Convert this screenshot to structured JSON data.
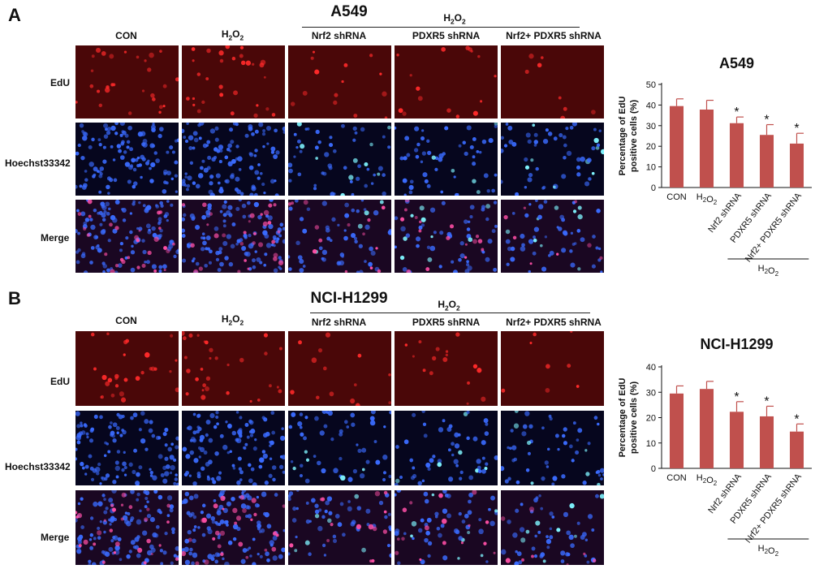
{
  "colors": {
    "bar": "#c0504d",
    "edu_channel": "#ff2a2a",
    "hoechst_channel": "#3a6bff",
    "hoechst_bright": "#7ff5ff",
    "merge_overlap": "#ff4fa6",
    "image_background": "#0b0218"
  },
  "panels": [
    {
      "letter": "A",
      "title": "A549",
      "columns": [
        "CON",
        "H2O2",
        "Nrf2 shRNA",
        "PDXR5 shRNA",
        "Nrf2+ PDXR5 shRNA"
      ],
      "group_label": "H2O2",
      "rows": [
        "EdU",
        "Hoechst33342",
        "Merge"
      ]
    },
    {
      "letter": "B",
      "title": "NCI-H1299",
      "columns": [
        "CON",
        "H2O2",
        "Nrf2 shRNA",
        "PDXR5 shRNA",
        "Nrf2+ PDXR5 shRNA"
      ],
      "group_label": "H2O2",
      "rows": [
        "EdU",
        "Hoechst33342",
        "Merge"
      ]
    }
  ],
  "chart_data": [
    {
      "type": "bar",
      "title": "A549",
      "categories": [
        "CON",
        "H2O2",
        "Nrf2 shRNA",
        "PDXR5 shRNA",
        "Nrf2+ PDXR5 shRNA"
      ],
      "values": [
        39.5,
        37.8,
        31.2,
        25.5,
        21.3
      ],
      "errors": [
        3.5,
        4.5,
        3.0,
        5.0,
        5.0
      ],
      "significant": [
        false,
        false,
        true,
        true,
        true
      ],
      "significance_marker": "*",
      "ylabel": "Percentage of EdU positive cells (%)",
      "ylim": [
        0,
        50
      ],
      "yticks": [
        0,
        10,
        20,
        30,
        40,
        50
      ],
      "group_label": "H2O2"
    },
    {
      "type": "bar",
      "title": "NCI-H1299",
      "categories": [
        "CON",
        "H2O2",
        "Nrf2 shRNA",
        "PDXR5 shRNA",
        "Nrf2+ PDXR5 shRNA"
      ],
      "values": [
        29.5,
        31.3,
        22.3,
        20.5,
        14.5
      ],
      "errors": [
        3.0,
        3.0,
        4.0,
        4.0,
        3.0
      ],
      "significant": [
        false,
        false,
        true,
        true,
        true
      ],
      "significance_marker": "*",
      "ylabel": "Percentage of EdU positive cells (%)",
      "ylim": [
        0,
        40
      ],
      "yticks": [
        0,
        10,
        20,
        30,
        40
      ],
      "group_label": "H2O2"
    }
  ]
}
